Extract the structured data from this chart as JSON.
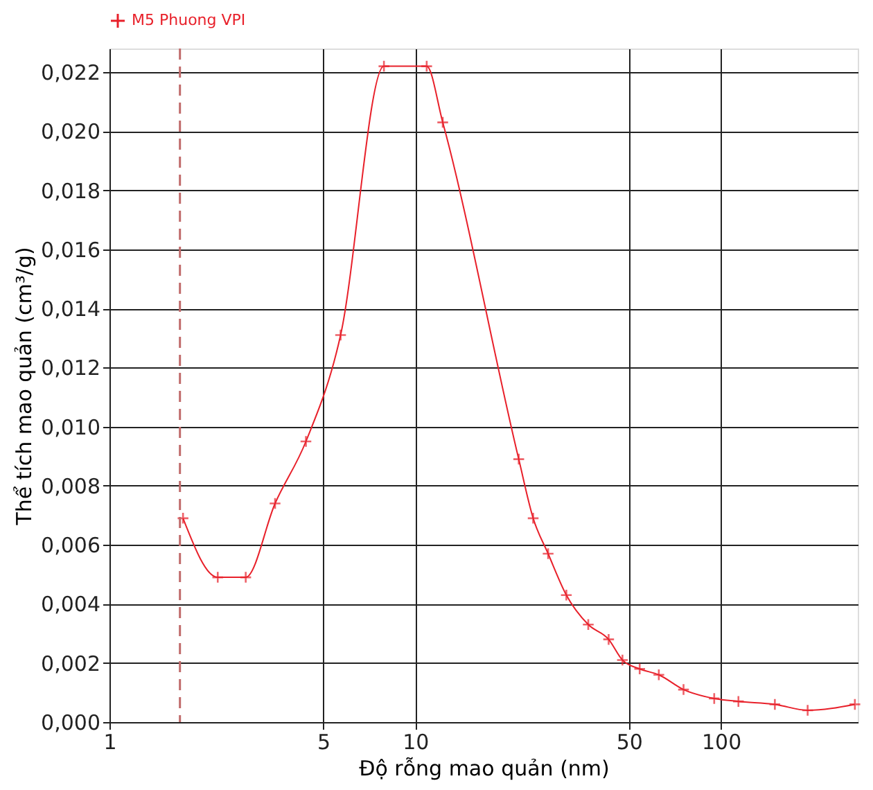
{
  "chart_data": {
    "type": "line",
    "xlabel": "Độ rỗng mao quản (nm)",
    "ylabel": "Thể tích mao quản (cm³/g)",
    "series": [
      {
        "name": "M5 Phuong VPI",
        "color": "#e8202a",
        "x": [
          1.74,
          2.26,
          2.79,
          3.48,
          4.39,
          5.7,
          7.9,
          10.9,
          12.3,
          21.8,
          24.3,
          27.2,
          31.2,
          36.8,
          42.9,
          47.6,
          54.2,
          62.6,
          75.4,
          95,
          114,
          150,
          192,
          274
        ],
        "values": [
          0.0069,
          0.0049,
          0.0049,
          0.0074,
          0.0095,
          0.0131,
          0.0222,
          0.0222,
          0.0203,
          0.0089,
          0.0069,
          0.0057,
          0.0043,
          0.0033,
          0.0028,
          0.0021,
          0.0018,
          0.0016,
          0.0011,
          0.0008,
          0.0007,
          0.0006,
          0.0004,
          0.0006
        ]
      }
    ],
    "log": "x",
    "xlim": [
      1,
      280
    ],
    "xticks": [
      1,
      5,
      10,
      50,
      100
    ],
    "ylim": [
      0,
      0.0228
    ],
    "yticks": [
      {
        "value": 0,
        "label": "0,000"
      },
      {
        "value": 0.002,
        "label": "0,002"
      },
      {
        "value": 0.004,
        "label": "0,004"
      },
      {
        "value": 0.006,
        "label": "0,006"
      },
      {
        "value": 0.008,
        "label": "0,008"
      },
      {
        "value": 0.01,
        "label": "0,010"
      },
      {
        "value": 0.012,
        "label": "0,012"
      },
      {
        "value": 0.014,
        "label": "0,014"
      },
      {
        "value": 0.016,
        "label": "0,016"
      },
      {
        "value": 0.018,
        "label": "0,018"
      },
      {
        "value": 0.02,
        "label": "0,020"
      },
      {
        "value": 0.022,
        "label": "0,022"
      }
    ],
    "ref_lines": [
      {
        "axis": "x",
        "value": 1.7,
        "color": "#c06a6a",
        "line_style": "dashed"
      }
    ],
    "grid": true,
    "legend": "top left",
    "marker": "cross",
    "line_style": "solid"
  }
}
